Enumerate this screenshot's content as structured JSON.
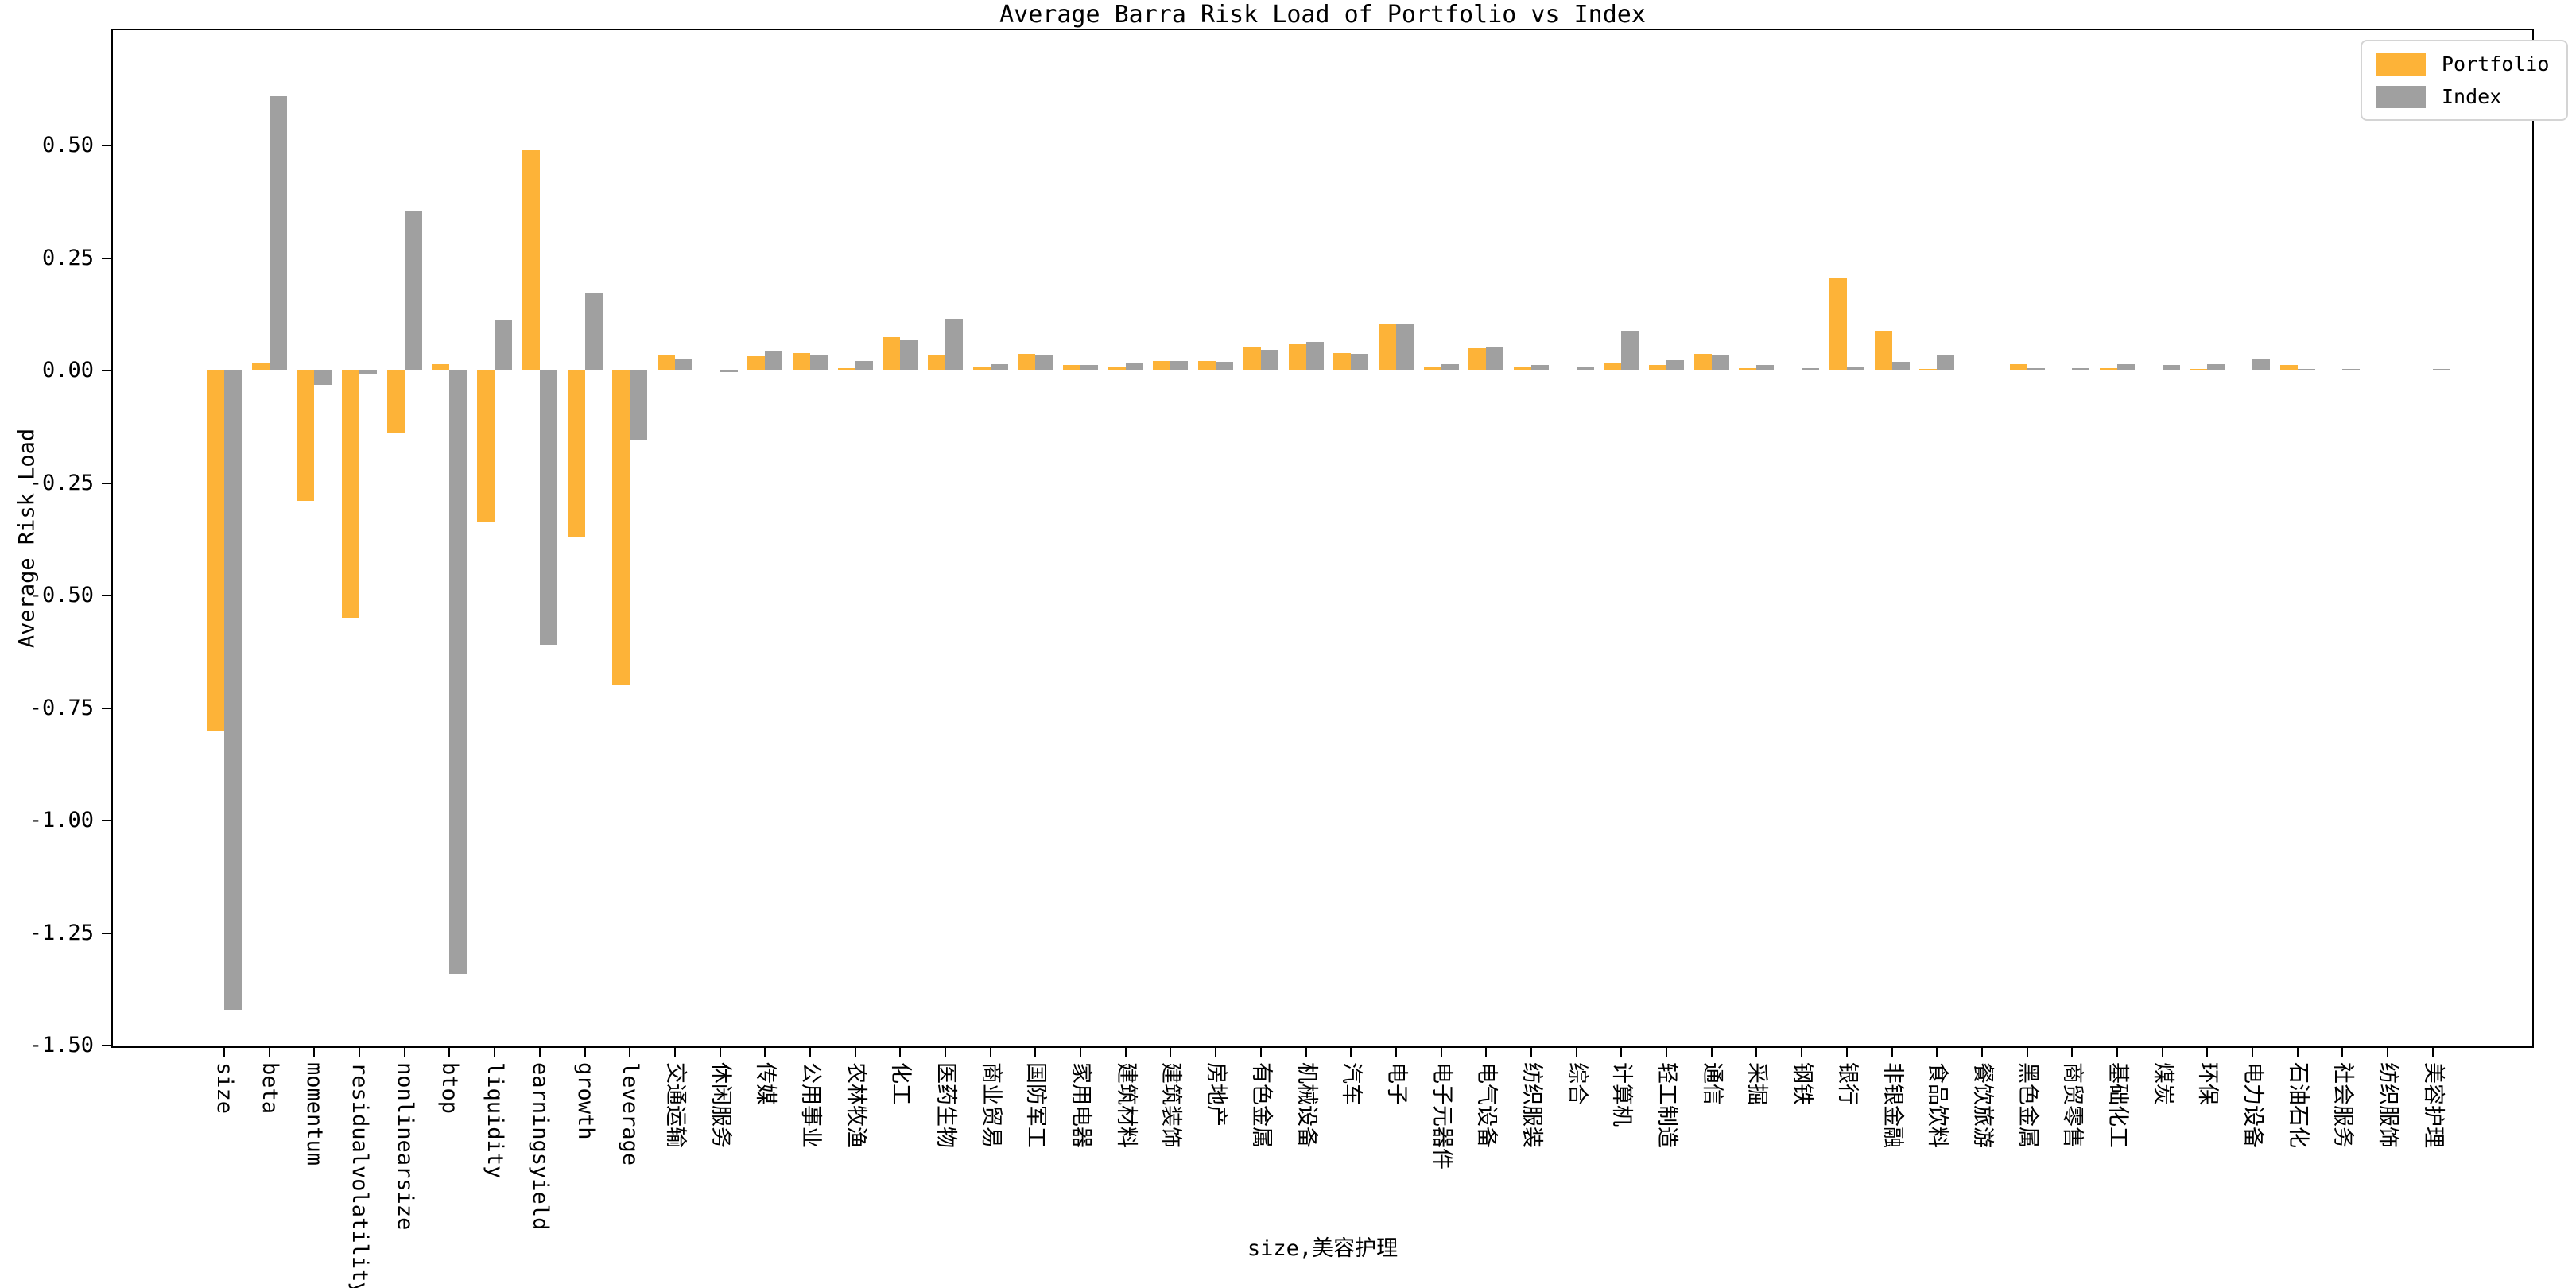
{
  "colors": {
    "portfolio": "#FDB338",
    "index": "#A0A0A0",
    "axis": "#000000",
    "legend_border": "#d4d4d4",
    "background": "#ffffff"
  },
  "chart_data": {
    "type": "bar",
    "title": "Average Barra Risk Load of Portfolio vs Index",
    "xlabel": "size,美容护理",
    "ylabel": "Average Risk Load",
    "grid": false,
    "legend_position": "upper right",
    "ylim": [
      -1.505,
      0.76
    ],
    "yticks": [
      0.5,
      0.25,
      0.0,
      -0.25,
      -0.5,
      -0.75,
      -1.0,
      -1.25,
      -1.5
    ],
    "ytick_labels": [
      "0.50",
      "0.25",
      "0.00",
      "-0.25",
      "-0.50",
      "-0.75",
      "-1.00",
      "-1.25",
      "-1.50"
    ],
    "categories": [
      "size",
      "beta",
      "momentum",
      "residualvolatility",
      "nonlinearsize",
      "btop",
      "liquidity",
      "earningsyield",
      "growth",
      "leverage",
      "交通运输",
      "休闲服务",
      "传媒",
      "公用事业",
      "农林牧渔",
      "化工",
      "医药生物",
      "商业贸易",
      "国防军工",
      "家用电器",
      "建筑材料",
      "建筑装饰",
      "房地产",
      "有色金属",
      "机械设备",
      "汽车",
      "电子",
      "电子元器件",
      "电气设备",
      "纺织服装",
      "综合",
      "计算机",
      "轻工制造",
      "通信",
      "采掘",
      "钢铁",
      "银行",
      "非银金融",
      "食品饮料",
      "餐饮旅游",
      "黑色金属",
      "商贸零售",
      "基础化工",
      "煤炭",
      "环保",
      "电力设备",
      "石油石化",
      "社会服务",
      "纺织服饰",
      "美容护理"
    ],
    "series": [
      {
        "name": "Portfolio",
        "values": [
          -0.8,
          0.018,
          -0.29,
          -0.55,
          -0.14,
          0.015,
          -0.335,
          0.49,
          -0.37,
          -0.7,
          0.034,
          0.001,
          0.032,
          0.04,
          0.005,
          0.075,
          0.035,
          0.008,
          0.038,
          0.012,
          0.007,
          0.022,
          0.022,
          0.051,
          0.058,
          0.04,
          0.103,
          0.01,
          0.05,
          0.01,
          0.002,
          0.018,
          0.013,
          0.037,
          0.006,
          0.002,
          0.205,
          0.089,
          0.004,
          0.001,
          0.015,
          0.001,
          0.005,
          0.001,
          0.004,
          0.002,
          0.013,
          0.001,
          0.0,
          0.001
        ]
      },
      {
        "name": "Index",
        "values": [
          -1.42,
          0.61,
          -0.032,
          -0.008,
          0.355,
          -1.34,
          0.113,
          -0.61,
          0.172,
          -0.155,
          0.027,
          -0.004,
          0.042,
          0.035,
          0.022,
          0.068,
          0.115,
          0.015,
          0.035,
          0.012,
          0.018,
          0.022,
          0.02,
          0.047,
          0.064,
          0.038,
          0.102,
          0.015,
          0.052,
          0.012,
          0.007,
          0.088,
          0.024,
          0.034,
          0.012,
          0.005,
          0.01,
          0.019,
          0.034,
          0.001,
          0.005,
          0.005,
          0.014,
          0.013,
          0.014,
          0.026,
          0.004,
          0.004,
          0.0,
          0.003
        ]
      }
    ]
  }
}
